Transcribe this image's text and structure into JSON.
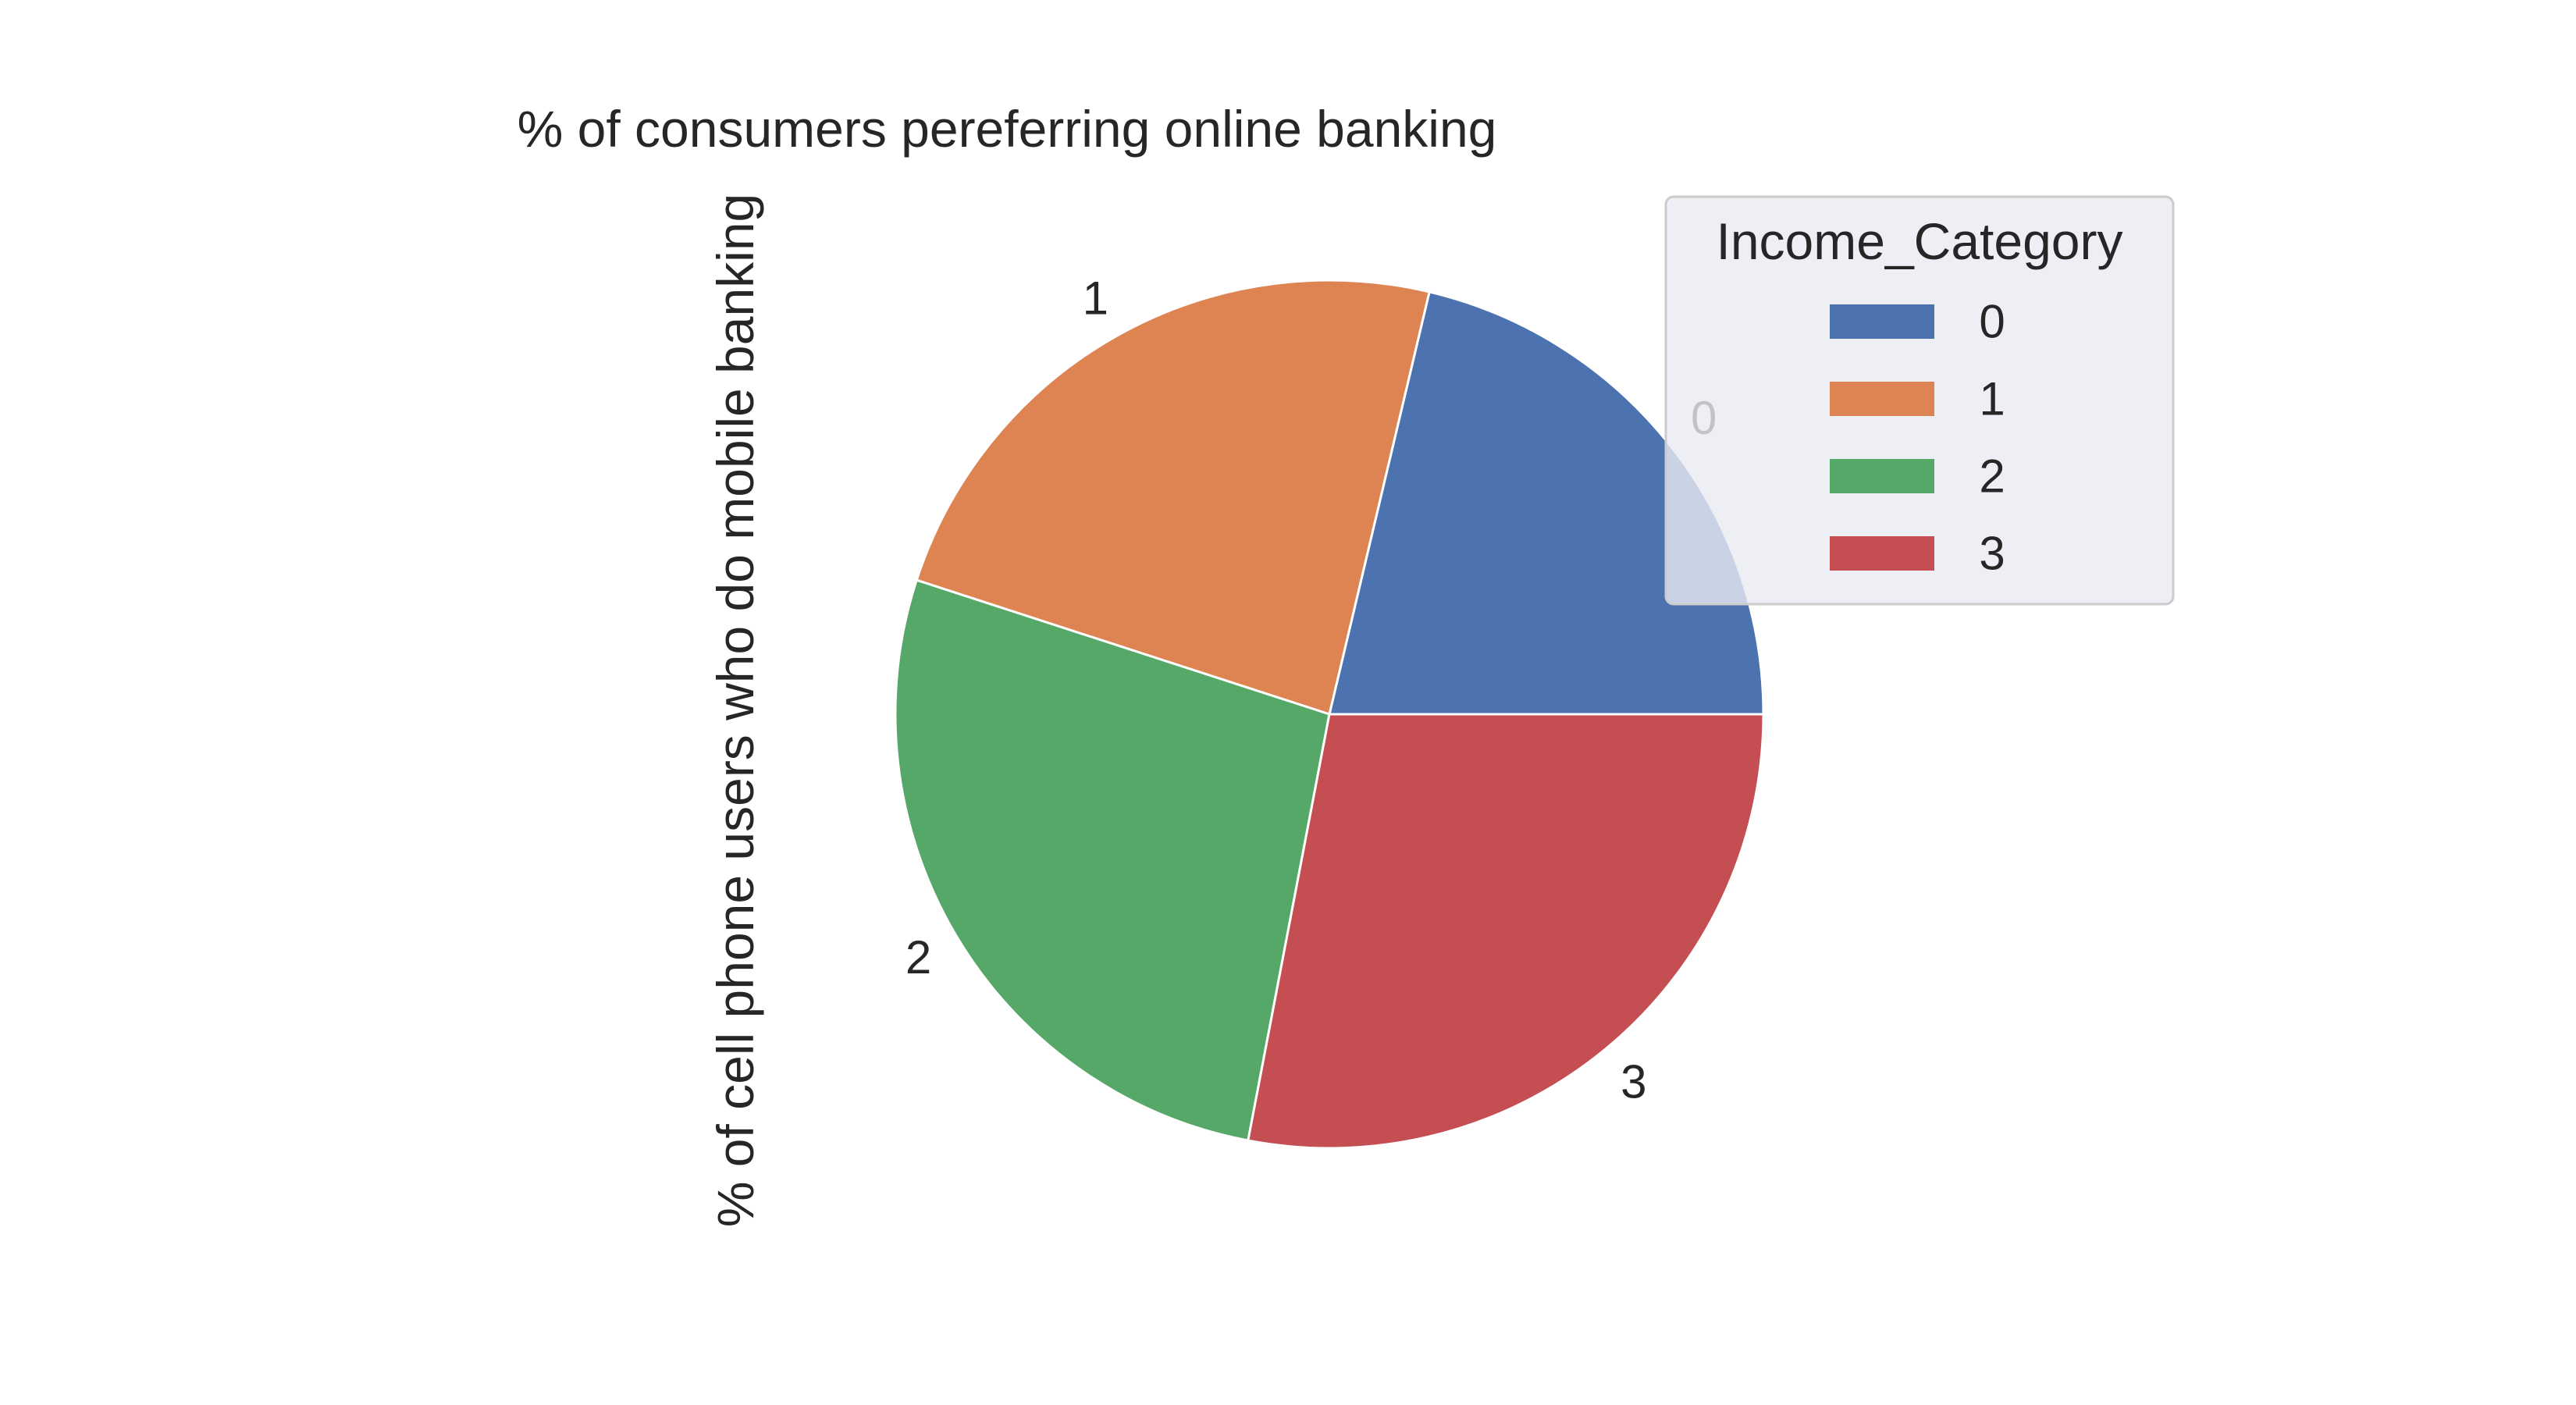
{
  "chart_data": {
    "type": "pie",
    "title": "% of consumers pereferring online banking",
    "ylabel": "% of cell phone users who do mobile banking",
    "categories": [
      "0",
      "1",
      "2",
      "3"
    ],
    "values": [
      21.3,
      23.7,
      27.0,
      28.0
    ],
    "colors": [
      "#4c72b0",
      "#dd8452",
      "#55a868",
      "#c44e52"
    ],
    "start_angle_deg": 0,
    "direction": "counterclockwise",
    "legend": {
      "title": "Income_Category",
      "placement": "top-right",
      "entries": [
        "0",
        "1",
        "2",
        "3"
      ]
    }
  }
}
